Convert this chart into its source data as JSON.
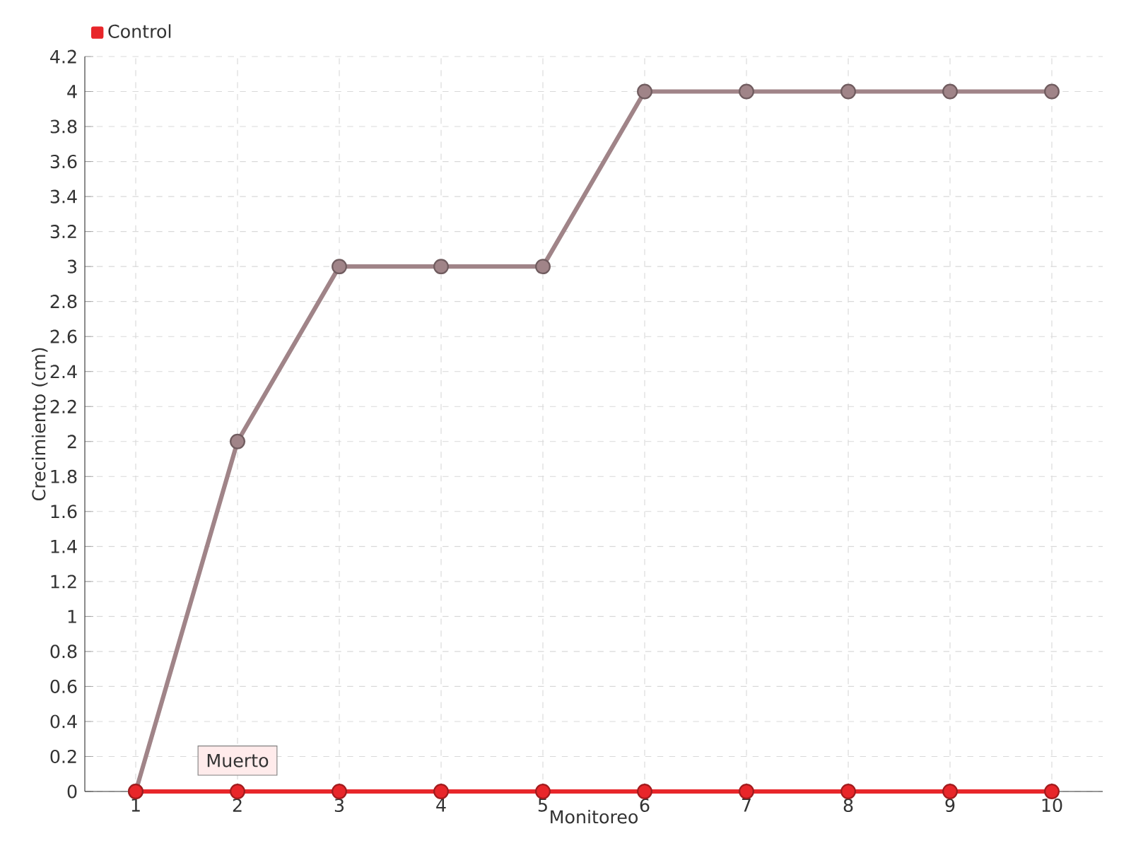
{
  "chart_data": {
    "type": "line",
    "categories": [
      "1",
      "2",
      "3",
      "4",
      "5",
      "6",
      "7",
      "8",
      "9",
      "10"
    ],
    "series": [
      {
        "color": "#a08488",
        "values": [
          0,
          2,
          3,
          3,
          3,
          4,
          4,
          4,
          4,
          4
        ]
      },
      {
        "name": "Control",
        "color": "#e8262a",
        "values": [
          0,
          0,
          0,
          0,
          0,
          0,
          0,
          0,
          0,
          0
        ]
      }
    ],
    "xlabel": "Monitoreo",
    "ylabel": "Crecimiento (cm)",
    "ylim": [
      0,
      4.2
    ],
    "yticks": [
      0,
      0.2,
      0.4,
      0.6,
      0.8,
      1,
      1.2,
      1.4,
      1.6,
      1.8,
      2,
      2.2,
      2.4,
      2.6,
      2.8,
      3,
      3.2,
      3.4,
      3.6,
      3.8,
      4,
      4.2
    ],
    "annotations": [
      {
        "text": "Muerto",
        "x": "2",
        "y": 0
      }
    ],
    "grid": true,
    "legend": "top left",
    "marker": "circle",
    "line_style": "solid"
  }
}
